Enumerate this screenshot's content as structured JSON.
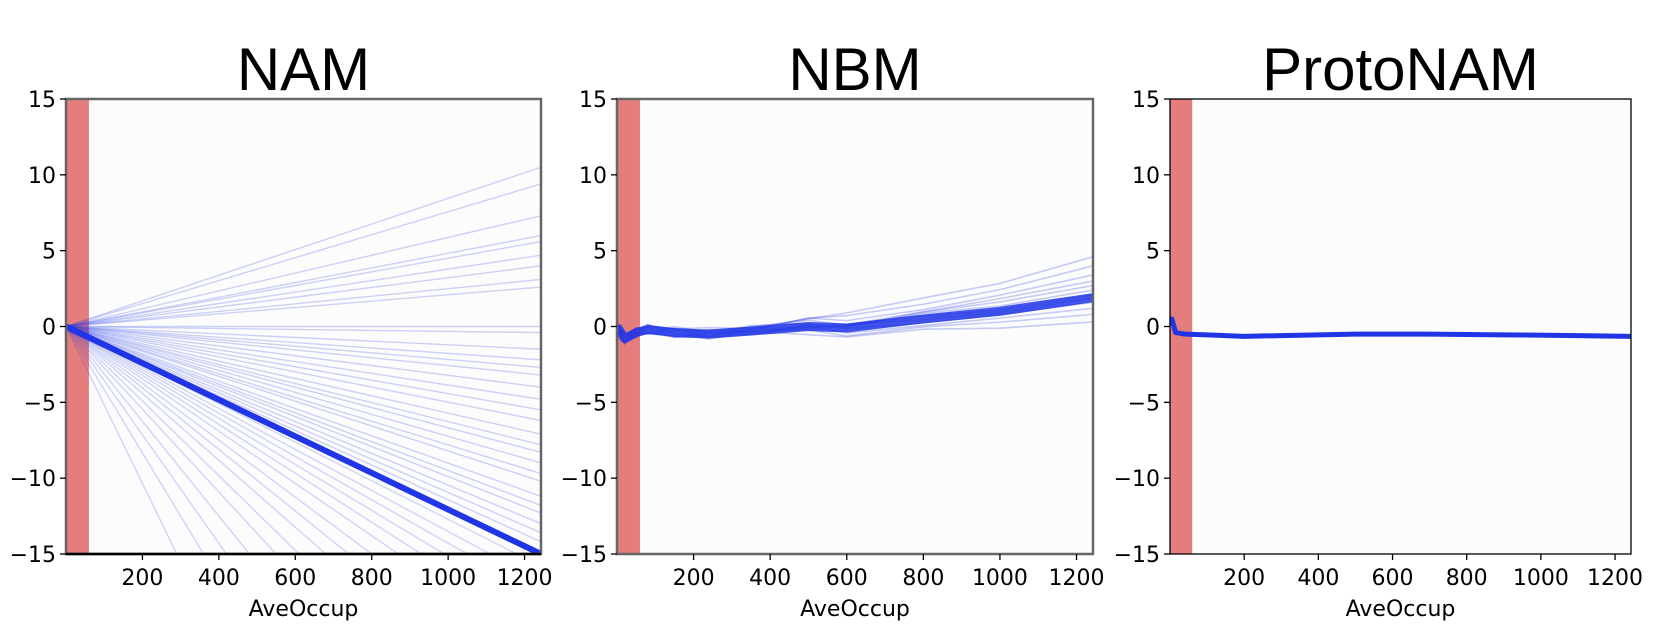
{
  "chart_data": [
    {
      "type": "line",
      "title": "NAM",
      "xlabel": "AveOccup",
      "ylabel": "",
      "xlim": [
        0,
        1243
      ],
      "ylim": [
        -15,
        15
      ],
      "xticks": [
        200,
        400,
        600,
        800,
        1000,
        1200
      ],
      "yticks": [
        15,
        10,
        5,
        0,
        -5,
        -10,
        -15
      ],
      "highlight_band": {
        "x": [
          0,
          60
        ],
        "color": "#e57d7d"
      },
      "line_color": "#1f35e6",
      "main_curve": {
        "x": [
          0,
          1243
        ],
        "y": [
          0,
          -15
        ]
      },
      "ensemble_end_values": [
        10.5,
        9.4,
        7.3,
        6,
        5.6,
        4.7,
        4,
        3.1,
        2.6,
        0,
        -0.4,
        -1.5,
        -2.2,
        -2.7,
        -3.2,
        -4,
        -4.8,
        -5.5,
        -6.2,
        -7.1,
        -7.8,
        -8.3,
        -9,
        -9.7,
        -10.2,
        -11.2,
        -11.8,
        -12.3,
        -13,
        -13.6,
        -14.2
      ],
      "steep_curves_end_x": [
        290,
        360,
        420,
        480,
        550,
        610,
        680,
        740,
        800,
        870,
        930,
        990,
        1050,
        1110,
        1180,
        1230
      ]
    },
    {
      "type": "line",
      "title": "NBM",
      "xlabel": "AveOccup",
      "ylabel": "",
      "xlim": [
        0,
        1243
      ],
      "ylim": [
        -15,
        15
      ],
      "xticks": [
        200,
        400,
        600,
        800,
        1000,
        1200
      ],
      "yticks": [
        15,
        10,
        5,
        0,
        -5,
        -10,
        -15
      ],
      "highlight_band": {
        "x": [
          0,
          60
        ],
        "color": "#e57d7d"
      },
      "line_color": "#1f35e6",
      "main_curve": {
        "x": [
          0,
          20,
          50,
          80,
          150,
          240,
          350,
          500,
          600,
          800,
          1000,
          1243
        ],
        "y": [
          0,
          -0.8,
          -0.4,
          -0.2,
          -0.4,
          -0.5,
          -0.3,
          0,
          -0.1,
          0.5,
          1.0,
          1.9
        ]
      },
      "ensemble_end_values": [
        4.6,
        4,
        3.4,
        3,
        2.7,
        2.4,
        2.1,
        1.9,
        1.6,
        1.2,
        0.8,
        0.3
      ]
    },
    {
      "type": "line",
      "title": "ProtoNAM",
      "xlabel": "AveOccup",
      "ylabel": "",
      "xlim": [
        0,
        1243
      ],
      "ylim": [
        -15,
        15
      ],
      "xticks": [
        200,
        400,
        600,
        800,
        1000,
        1200
      ],
      "yticks": [
        15,
        10,
        5,
        0,
        -5,
        -10,
        -15
      ],
      "highlight_band": {
        "x": [
          0,
          60
        ],
        "color": "#e57d7d"
      },
      "line_color": "#1f35e6",
      "main_curve": {
        "x": [
          0,
          5,
          15,
          40,
          100,
          200,
          300,
          500,
          700,
          900,
          1100,
          1243
        ],
        "y": [
          0.3,
          0.5,
          -0.4,
          -0.5,
          -0.55,
          -0.65,
          -0.6,
          -0.5,
          -0.5,
          -0.55,
          -0.6,
          -0.65
        ]
      }
    }
  ]
}
